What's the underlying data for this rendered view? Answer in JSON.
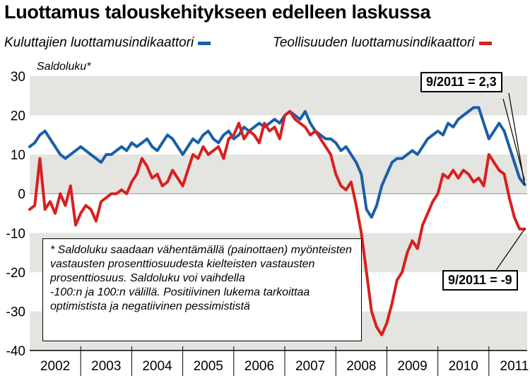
{
  "title": "Luottamus talouskehitykseen edelleen laskussa",
  "legend": {
    "consumer": "Kuluttajien luottamusindikaattori",
    "industry": "Teollisuuden luottamusindikaattori"
  },
  "colors": {
    "consumer": "#1a5fa8",
    "industry": "#d8201e",
    "band": "#e4e4e1"
  },
  "callouts": {
    "consumer": "9/2011 = 2,3",
    "industry": "9/2011 = -9"
  },
  "note": "* Saldoluku saadaan vähentämällä (painottaen) myönteisten vastausten prosenttiosuudesta kielteisten vastausten prosenttiosuus. Saldoluku voi vaihdella\n-100:n ja 100:n välillä. Positiivinen lukema tarkoittaa optimistista ja negatiivinen pessimististä",
  "chart_data": {
    "type": "line",
    "ylabel": "Saldoluku*",
    "ylim": [
      -40,
      30
    ],
    "yticks": [
      "30",
      "20",
      "10",
      "0",
      "-10",
      "-20",
      "-30",
      "-40"
    ],
    "x_tick_labels": [
      "2002",
      "2003",
      "2004",
      "2005",
      "2006",
      "2007",
      "2008",
      "2009",
      "2010",
      "2011"
    ],
    "x_start": 2002.0,
    "x_end": 2011.75,
    "grid": "alternating horizontal bands",
    "series": [
      {
        "name": "Kuluttajien luottamusindikaattori",
        "x": [
          2002.0,
          2002.1,
          2002.2,
          2002.3,
          2002.4,
          2002.5,
          2002.6,
          2002.7,
          2002.8,
          2002.9,
          2003.0,
          2003.1,
          2003.2,
          2003.3,
          2003.4,
          2003.5,
          2003.6,
          2003.7,
          2003.8,
          2003.9,
          2004.0,
          2004.1,
          2004.2,
          2004.3,
          2004.4,
          2004.5,
          2004.6,
          2004.7,
          2004.8,
          2004.9,
          2005.0,
          2005.1,
          2005.2,
          2005.3,
          2005.4,
          2005.5,
          2005.6,
          2005.7,
          2005.8,
          2005.9,
          2006.0,
          2006.1,
          2006.2,
          2006.3,
          2006.4,
          2006.5,
          2006.6,
          2006.7,
          2006.8,
          2006.9,
          2007.0,
          2007.1,
          2007.2,
          2007.3,
          2007.4,
          2007.5,
          2007.6,
          2007.7,
          2007.8,
          2007.9,
          2008.0,
          2008.1,
          2008.2,
          2008.3,
          2008.4,
          2008.5,
          2008.6,
          2008.7,
          2008.8,
          2008.9,
          2009.0,
          2009.1,
          2009.2,
          2009.3,
          2009.4,
          2009.5,
          2009.6,
          2009.7,
          2009.8,
          2009.9,
          2010.0,
          2010.1,
          2010.2,
          2010.3,
          2010.4,
          2010.5,
          2010.6,
          2010.7,
          2010.8,
          2010.9,
          2011.0,
          2011.1,
          2011.2,
          2011.3,
          2011.4,
          2011.5,
          2011.6,
          2011.7
        ],
        "values": [
          12,
          13,
          15,
          16,
          14,
          12,
          10,
          9,
          10,
          11,
          12,
          11,
          10,
          9,
          8,
          10,
          10,
          11,
          12,
          11,
          13,
          12,
          13,
          14,
          12,
          11,
          13,
          15,
          14,
          12,
          10,
          12,
          14,
          13,
          15,
          16,
          14,
          13,
          15,
          16,
          14,
          15,
          17,
          16,
          17,
          18,
          17,
          18,
          19,
          18,
          20,
          21,
          20,
          19,
          21,
          18,
          16,
          15,
          14,
          14,
          13,
          11,
          12,
          10,
          8,
          5,
          -4,
          -6,
          -3,
          2,
          5,
          8,
          9,
          9,
          10,
          11,
          10,
          12,
          14,
          15,
          16,
          15,
          18,
          17,
          19,
          20,
          21,
          22,
          22,
          18,
          14,
          16,
          18,
          16,
          12,
          8,
          4,
          2.3
        ]
      },
      {
        "name": "Teollisuuden luottamusindikaattori",
        "x": [
          2002.0,
          2002.1,
          2002.2,
          2002.3,
          2002.4,
          2002.5,
          2002.6,
          2002.7,
          2002.8,
          2002.9,
          2003.0,
          2003.1,
          2003.2,
          2003.3,
          2003.4,
          2003.5,
          2003.6,
          2003.7,
          2003.8,
          2003.9,
          2004.0,
          2004.1,
          2004.2,
          2004.3,
          2004.4,
          2004.5,
          2004.6,
          2004.7,
          2004.8,
          2004.9,
          2005.0,
          2005.1,
          2005.2,
          2005.3,
          2005.4,
          2005.5,
          2005.6,
          2005.7,
          2005.8,
          2005.9,
          2006.0,
          2006.1,
          2006.2,
          2006.3,
          2006.4,
          2006.5,
          2006.6,
          2006.7,
          2006.8,
          2006.9,
          2007.0,
          2007.1,
          2007.2,
          2007.3,
          2007.4,
          2007.5,
          2007.6,
          2007.7,
          2007.8,
          2007.9,
          2008.0,
          2008.1,
          2008.2,
          2008.3,
          2008.4,
          2008.5,
          2008.6,
          2008.7,
          2008.8,
          2008.9,
          2009.0,
          2009.1,
          2009.2,
          2009.3,
          2009.4,
          2009.5,
          2009.6,
          2009.7,
          2009.8,
          2009.9,
          2010.0,
          2010.1,
          2010.2,
          2010.3,
          2010.4,
          2010.5,
          2010.6,
          2010.7,
          2010.8,
          2010.9,
          2011.0,
          2011.1,
          2011.2,
          2011.3,
          2011.4,
          2011.5,
          2011.6,
          2011.7
        ],
        "values": [
          -4,
          -3,
          9,
          -4,
          -2,
          -5,
          0,
          -3,
          2,
          -8,
          -5,
          -3,
          -4,
          -7,
          -2,
          -1,
          0,
          0,
          1,
          0,
          3,
          5,
          9,
          7,
          4,
          5,
          2,
          3,
          6,
          4,
          2,
          6,
          10,
          9,
          12,
          10,
          11,
          12,
          9,
          14,
          15,
          18,
          14,
          16,
          15,
          13,
          18,
          16,
          17,
          14,
          20,
          21,
          19,
          18,
          17,
          15,
          16,
          14,
          12,
          10,
          5,
          2,
          1,
          3,
          -3,
          -10,
          -20,
          -30,
          -34,
          -36,
          -33,
          -28,
          -22,
          -20,
          -15,
          -12,
          -14,
          -8,
          -5,
          -2,
          0,
          5,
          4,
          6,
          4,
          6,
          5,
          3,
          4,
          2,
          10,
          8,
          6,
          5,
          -1,
          -6,
          -9,
          -9
        ]
      }
    ]
  }
}
